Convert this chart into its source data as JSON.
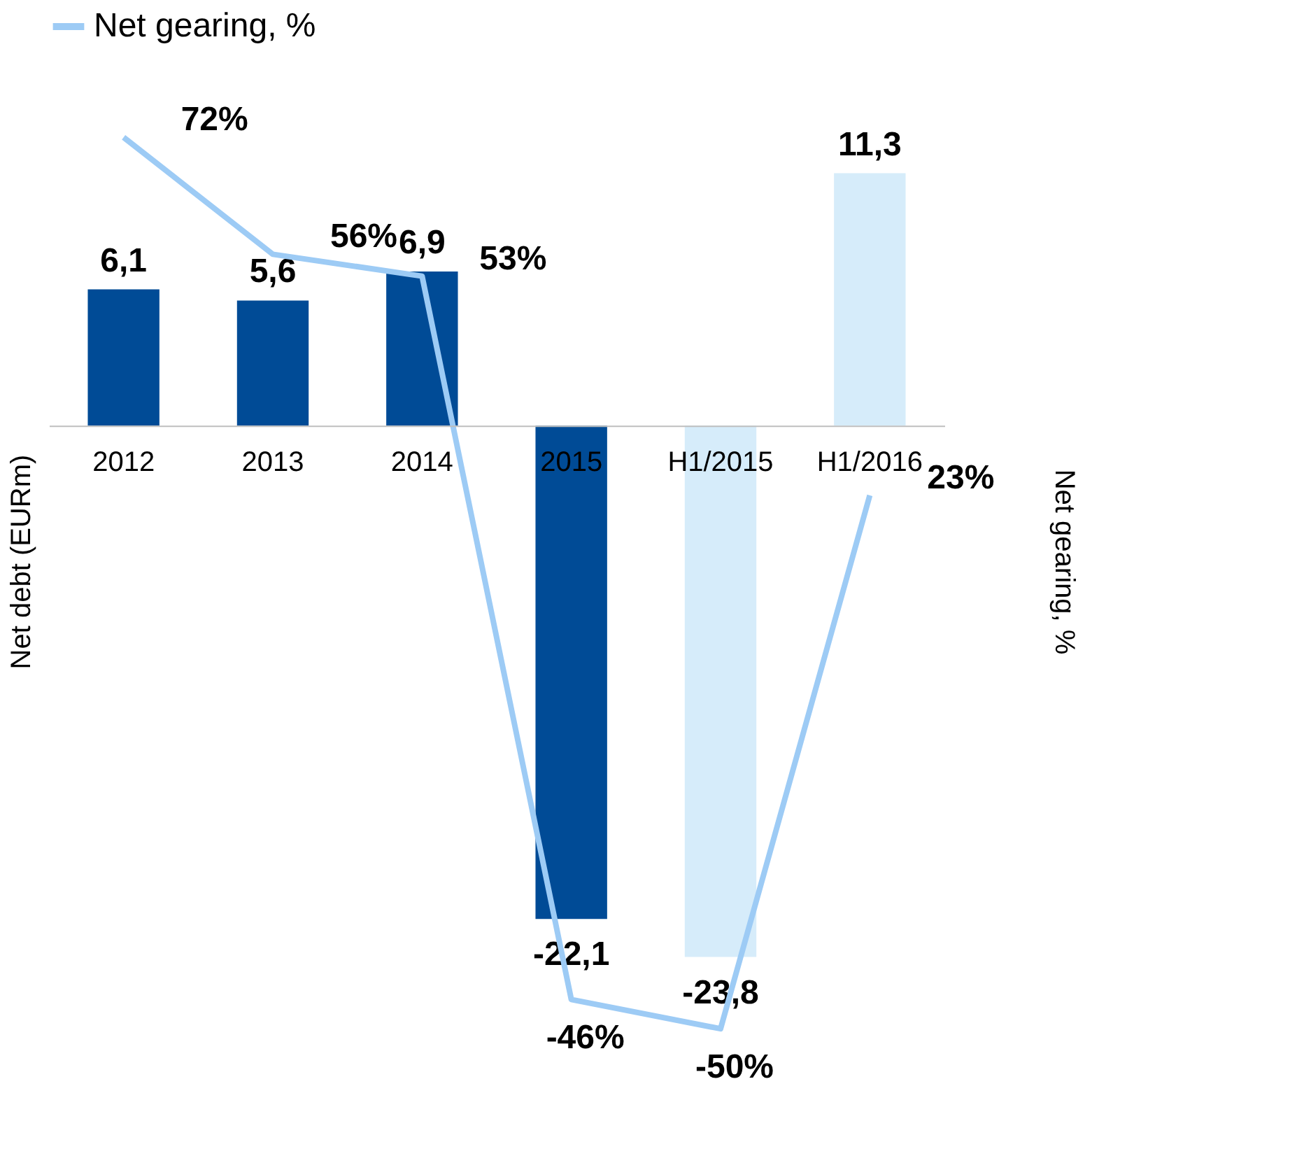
{
  "chart_data": {
    "type": "bar",
    "categories": [
      "2012",
      "2013",
      "2014",
      "2015",
      "H1/2015",
      "H1/2016"
    ],
    "ylabel": "Net debt (EURm)",
    "y2label": "Net gearing, %",
    "tick_labels": "x",
    "legend": "top left",
    "grid": false,
    "series": [
      {
        "colors": [
          "#004b96",
          "#004b96",
          "#004b96",
          "#004b96",
          "#d6ecfa",
          "#d6ecfa"
        ],
        "values": [
          6.1,
          5.6,
          6.9,
          -22.1,
          -23.8,
          11.3
        ],
        "value_labels": [
          "6,1",
          "5,6",
          "6,9",
          "-22,1",
          "-23,8",
          "11,3"
        ]
      },
      {
        "type": "line",
        "name": "Net gearing, %",
        "color": "#9dcbf5",
        "axis": "y2",
        "values": [
          72,
          56,
          53,
          -46,
          -50,
          23
        ],
        "value_labels": [
          "72%",
          "56%",
          "53%",
          "-46%",
          "-50%",
          "23%"
        ],
        "marker": "none",
        "line_style": "solid"
      }
    ]
  }
}
